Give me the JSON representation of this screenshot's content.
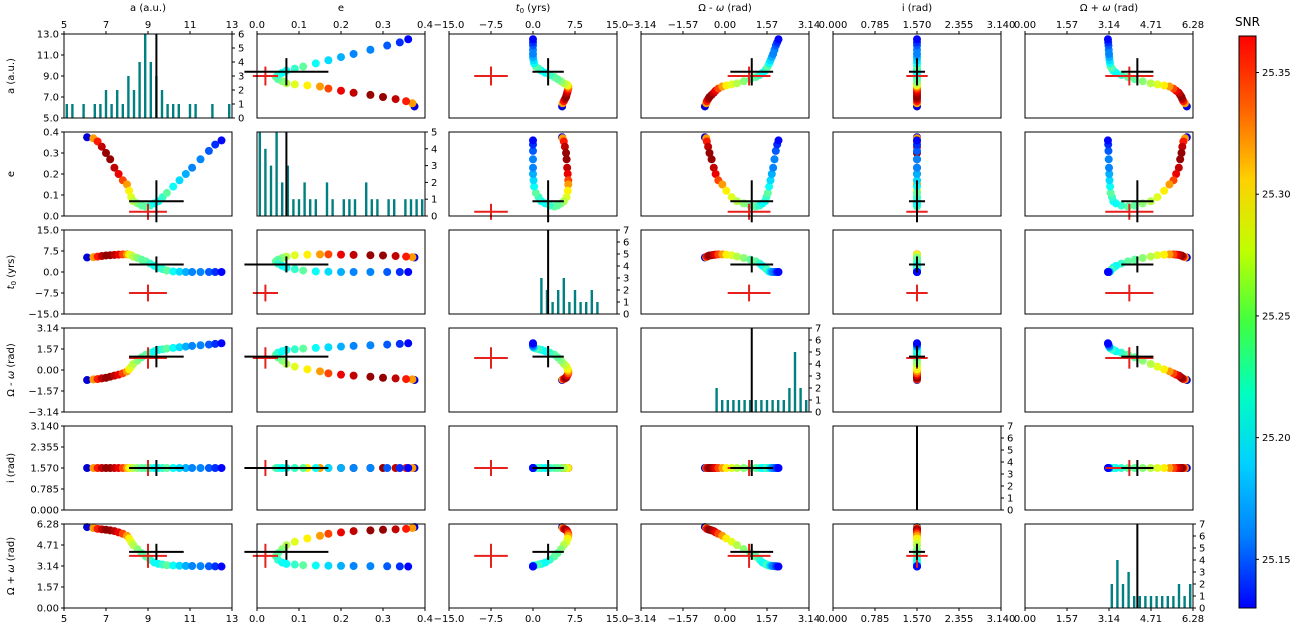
{
  "chart_data": {
    "type": "corner",
    "parameters": [
      {
        "label": "a (a.u.)",
        "lim": [
          5,
          13
        ],
        "ticks": [
          5,
          7,
          9,
          11,
          13
        ],
        "tick_labels": [
          "5.0",
          "7.0",
          "9.0",
          "11.0",
          "13.0"
        ],
        "top_tick_labels": [
          "5",
          "7",
          "9",
          "11",
          "13"
        ]
      },
      {
        "label": "e",
        "lim": [
          0,
          0.4
        ],
        "ticks": [
          0,
          0.1,
          0.2,
          0.3,
          0.4
        ],
        "tick_labels": [
          "0.0",
          "0.1",
          "0.2",
          "0.3",
          "0.4"
        ],
        "top_tick_labels": [
          "0.0",
          "0.1",
          "0.2",
          "0.3",
          "0.4"
        ]
      },
      {
        "label": "t0 (yrs)",
        "lim": [
          -15,
          15
        ],
        "ticks": [
          -15,
          -7.5,
          0,
          7.5,
          15
        ],
        "tick_labels": [
          "−15.0",
          "−7.5",
          "0.0",
          "7.5",
          "15.0"
        ],
        "top_tick_labels": [
          "−15.0",
          "−7.5",
          "0.0",
          "7.5",
          "15.0"
        ]
      },
      {
        "label": "Ω - ω (rad)",
        "lim": [
          -3.14,
          3.14
        ],
        "ticks": [
          -3.14,
          -1.57,
          0,
          1.57,
          3.14
        ],
        "tick_labels": [
          "−3.14",
          "−1.57",
          "0.00",
          "1.57",
          "3.14"
        ],
        "top_tick_labels": [
          "−3.14",
          "−1.57",
          "0.00",
          "1.57",
          "3.14"
        ]
      },
      {
        "label": "i (rad)",
        "lim": [
          0,
          3.14
        ],
        "ticks": [
          0,
          0.785,
          1.57,
          2.355,
          3.14
        ],
        "tick_labels": [
          "0.000",
          "0.785",
          "1.570",
          "2.355",
          "3.140"
        ],
        "top_tick_labels": [
          "0.000",
          "0.785",
          "1.570",
          "2.355",
          "3.140"
        ]
      },
      {
        "label": "Ω + ω (rad)",
        "lim": [
          0,
          6.28
        ],
        "ticks": [
          0,
          1.57,
          3.14,
          4.71,
          6.28
        ],
        "tick_labels": [
          "0.00",
          "1.57",
          "3.14",
          "4.71",
          "6.28"
        ],
        "top_tick_labels": [
          "0.00",
          "1.57",
          "3.14",
          "4.71",
          "6.28"
        ]
      }
    ],
    "hist_right_axis": {
      "lim": [
        0,
        7
      ],
      "ticks": [
        0,
        1,
        2,
        3,
        4,
        5,
        6,
        7
      ]
    },
    "hist_right_axis_overrides": {
      "0": {
        "lim": [
          0,
          6
        ],
        "ticks": [
          0,
          1,
          2,
          3,
          4,
          5,
          6
        ]
      },
      "1": {
        "lim": [
          0,
          5
        ],
        "ticks": [
          0,
          1,
          2,
          3,
          4,
          5
        ]
      }
    },
    "truth": [
      9.0,
      0.02,
      -7.5,
      0.9,
      1.57,
      3.9
    ],
    "estimate": [
      9.4,
      0.07,
      2.7,
      1.0,
      1.57,
      4.2
    ],
    "estimate_err": [
      1.3,
      0.1,
      2.8,
      0.8,
      0.15,
      0.6
    ],
    "truth_err": [
      0.9,
      0.03,
      3.0,
      0.8,
      0.2,
      0.9
    ],
    "colorbar": {
      "label": "SNR",
      "range": [
        25.13,
        25.365
      ],
      "ticks": [
        25.15,
        25.2,
        25.25,
        25.3,
        25.35
      ],
      "tick_labels": [
        "25.15",
        "25.20",
        "25.25",
        "25.30",
        "25.35"
      ]
    },
    "samples": [
      {
        "a": 6.1,
        "e": 0.375,
        "t0": 5.2,
        "dm": -0.75,
        "inc": 1.57,
        "dp": 6.05,
        "snr": 25.15
      },
      {
        "a": 6.4,
        "e": 0.37,
        "t0": 5.3,
        "dm": -0.7,
        "inc": 1.57,
        "dp": 5.98,
        "snr": 25.3
      },
      {
        "a": 6.6,
        "e": 0.355,
        "t0": 5.5,
        "dm": -0.68,
        "inc": 1.57,
        "dp": 5.92,
        "snr": 25.33
      },
      {
        "a": 6.8,
        "e": 0.33,
        "t0": 5.7,
        "dm": -0.63,
        "inc": 1.57,
        "dp": 5.88,
        "snr": 25.35
      },
      {
        "a": 7.0,
        "e": 0.3,
        "t0": 5.9,
        "dm": -0.58,
        "inc": 1.57,
        "dp": 5.85,
        "snr": 25.36
      },
      {
        "a": 7.2,
        "e": 0.27,
        "t0": 6.0,
        "dm": -0.5,
        "inc": 1.57,
        "dp": 5.8,
        "snr": 25.36
      },
      {
        "a": 7.4,
        "e": 0.23,
        "t0": 6.1,
        "dm": -0.42,
        "inc": 1.57,
        "dp": 5.75,
        "snr": 25.35
      },
      {
        "a": 7.6,
        "e": 0.2,
        "t0": 6.2,
        "dm": -0.35,
        "inc": 1.57,
        "dp": 5.65,
        "snr": 25.34
      },
      {
        "a": 7.8,
        "e": 0.17,
        "t0": 6.3,
        "dm": -0.25,
        "inc": 1.57,
        "dp": 5.55,
        "snr": 25.32
      },
      {
        "a": 8.0,
        "e": 0.15,
        "t0": 6.3,
        "dm": -0.1,
        "inc": 1.57,
        "dp": 5.4,
        "snr": 25.3
      },
      {
        "a": 8.1,
        "e": 0.12,
        "t0": 6.2,
        "dm": 0.05,
        "inc": 1.57,
        "dp": 5.2,
        "snr": 25.28
      },
      {
        "a": 8.2,
        "e": 0.09,
        "t0": 6.0,
        "dm": 0.25,
        "inc": 1.57,
        "dp": 4.95,
        "snr": 25.27
      },
      {
        "a": 8.3,
        "e": 0.07,
        "t0": 5.5,
        "dm": 0.45,
        "inc": 1.57,
        "dp": 4.7,
        "snr": 25.26
      },
      {
        "a": 8.5,
        "e": 0.06,
        "t0": 5.0,
        "dm": 0.7,
        "inc": 1.57,
        "dp": 4.4,
        "snr": 25.25
      },
      {
        "a": 8.7,
        "e": 0.05,
        "t0": 4.4,
        "dm": 0.95,
        "inc": 1.57,
        "dp": 4.1,
        "snr": 25.24
      },
      {
        "a": 8.9,
        "e": 0.045,
        "t0": 3.8,
        "dm": 1.15,
        "inc": 1.57,
        "dp": 3.85,
        "snr": 25.24
      },
      {
        "a": 9.1,
        "e": 0.05,
        "t0": 3.0,
        "dm": 1.3,
        "inc": 1.57,
        "dp": 3.6,
        "snr": 25.23
      },
      {
        "a": 9.3,
        "e": 0.06,
        "t0": 2.2,
        "dm": 1.4,
        "inc": 1.57,
        "dp": 3.4,
        "snr": 25.22
      },
      {
        "a": 9.5,
        "e": 0.07,
        "t0": 1.5,
        "dm": 1.5,
        "inc": 1.57,
        "dp": 3.3,
        "snr": 25.22
      },
      {
        "a": 9.7,
        "e": 0.09,
        "t0": 1.0,
        "dm": 1.55,
        "inc": 1.57,
        "dp": 3.25,
        "snr": 25.23
      },
      {
        "a": 9.9,
        "e": 0.11,
        "t0": 0.5,
        "dm": 1.6,
        "inc": 1.57,
        "dp": 3.2,
        "snr": 25.24
      },
      {
        "a": 10.2,
        "e": 0.14,
        "t0": 0.2,
        "dm": 1.65,
        "inc": 1.57,
        "dp": 3.18,
        "snr": 25.22
      },
      {
        "a": 10.5,
        "e": 0.17,
        "t0": 0.1,
        "dm": 1.7,
        "inc": 1.57,
        "dp": 3.16,
        "snr": 25.21
      },
      {
        "a": 10.8,
        "e": 0.2,
        "t0": 0.0,
        "dm": 1.75,
        "inc": 1.57,
        "dp": 3.15,
        "snr": 25.2
      },
      {
        "a": 11.1,
        "e": 0.23,
        "t0": 0.0,
        "dm": 1.8,
        "inc": 1.57,
        "dp": 3.14,
        "snr": 25.19
      },
      {
        "a": 11.5,
        "e": 0.27,
        "t0": 0.0,
        "dm": 1.85,
        "inc": 1.57,
        "dp": 3.13,
        "snr": 25.19
      },
      {
        "a": 11.9,
        "e": 0.31,
        "t0": 0.0,
        "dm": 1.9,
        "inc": 1.57,
        "dp": 3.12,
        "snr": 25.18
      },
      {
        "a": 12.2,
        "e": 0.34,
        "t0": 0.0,
        "dm": 1.95,
        "inc": 1.57,
        "dp": 3.11,
        "snr": 25.17
      },
      {
        "a": 12.5,
        "e": 0.36,
        "t0": 0.0,
        "dm": 2.0,
        "inc": 1.57,
        "dp": 3.1,
        "snr": 25.16
      }
    ],
    "hist_counts": [
      [
        1,
        1,
        0,
        1,
        0,
        1,
        1,
        2,
        1,
        2,
        1,
        3,
        2,
        4,
        6,
        4,
        3,
        2,
        1,
        1,
        1,
        0,
        1,
        1,
        0,
        0,
        1,
        0,
        0,
        1
      ],
      [
        5,
        4,
        3,
        5,
        2,
        3,
        1,
        1,
        2,
        1,
        1,
        0,
        2,
        1,
        0,
        1,
        1,
        1,
        0,
        2,
        1,
        1,
        0,
        1,
        1,
        0,
        1,
        1,
        1,
        1
      ],
      [
        0,
        0,
        0,
        0,
        0,
        0,
        0,
        0,
        0,
        0,
        0,
        0,
        0,
        0,
        0,
        0,
        3,
        2,
        1,
        2,
        3,
        1,
        2,
        1,
        1,
        2,
        1,
        0,
        0,
        0
      ],
      [
        0,
        0,
        0,
        0,
        0,
        0,
        0,
        0,
        0,
        0,
        0,
        0,
        0,
        2,
        1,
        1,
        1,
        1,
        1,
        1,
        1,
        1,
        1,
        1,
        1,
        1,
        2,
        5,
        2,
        1
      ],
      [
        0,
        0,
        0,
        0,
        0,
        0,
        0,
        0,
        0,
        0,
        0,
        0,
        0,
        0,
        0,
        0,
        0,
        0,
        0,
        0,
        0,
        0,
        0,
        0,
        0,
        0,
        0,
        0,
        0,
        0
      ],
      [
        0,
        0,
        0,
        0,
        0,
        0,
        0,
        0,
        0,
        0,
        0,
        0,
        0,
        0,
        0,
        2,
        4,
        2,
        3,
        1,
        1,
        1,
        1,
        1,
        1,
        1,
        1,
        2,
        1,
        2
      ]
    ]
  }
}
